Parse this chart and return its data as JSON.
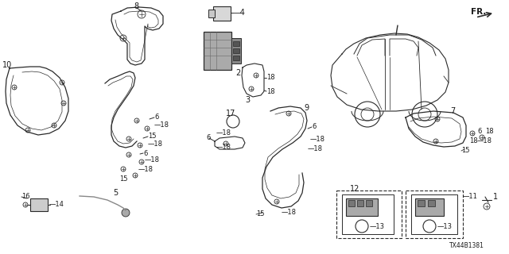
{
  "bg_color": "#ffffff",
  "line_color": "#2a2a2a",
  "text_color": "#1a1a1a",
  "diagram_code": "TX44B1381",
  "figsize": [
    6.4,
    3.2
  ],
  "dpi": 100
}
